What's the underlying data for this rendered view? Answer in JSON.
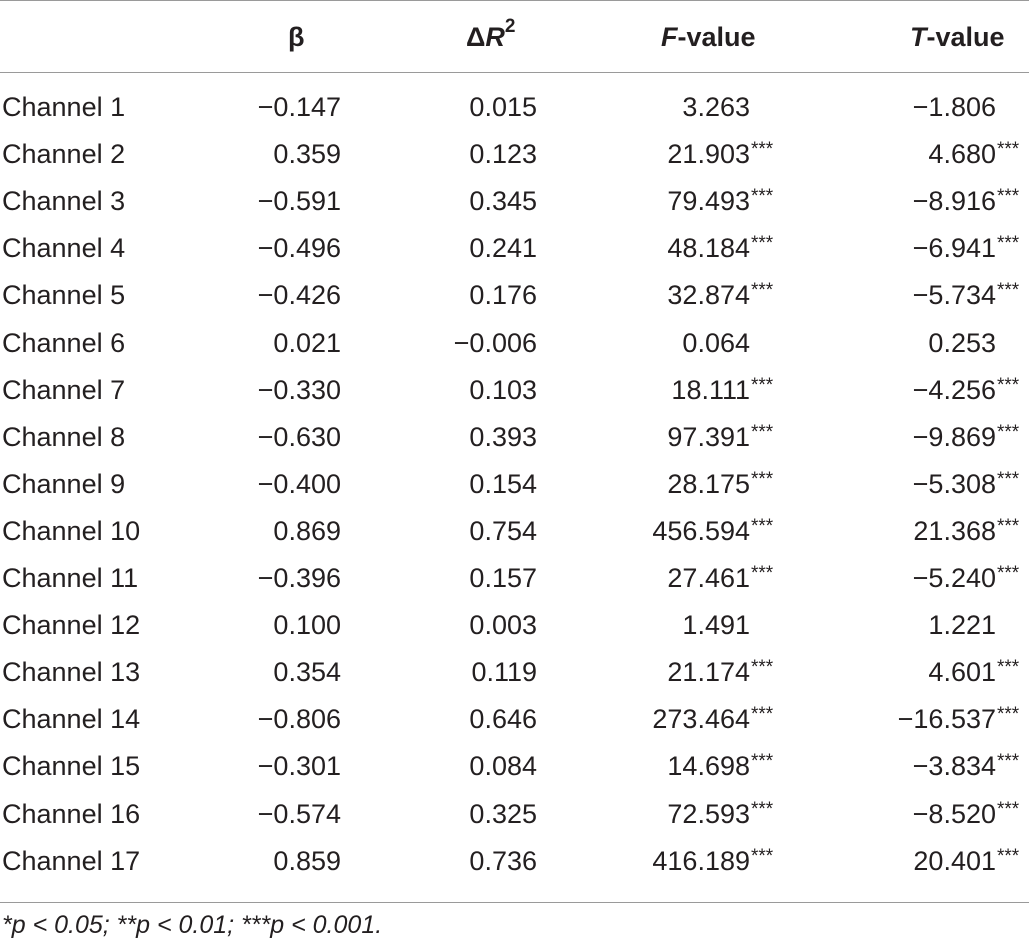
{
  "header": {
    "beta": "β",
    "delta_r2_prefix": "Δ",
    "delta_r2_var": "R",
    "delta_r2_sup": "2",
    "f_var": "F",
    "f_suffix": "-value",
    "t_var": "T",
    "t_suffix": "-value"
  },
  "rows": [
    {
      "label": "Channel 1",
      "beta": "−0.147",
      "dr2": "0.015",
      "f": "3.263",
      "f_sig": "",
      "t": "−1.806",
      "t_sig": ""
    },
    {
      "label": "Channel 2",
      "beta": "0.359",
      "dr2": "0.123",
      "f": "21.903",
      "f_sig": "***",
      "t": "4.680",
      "t_sig": "***"
    },
    {
      "label": "Channel 3",
      "beta": "−0.591",
      "dr2": "0.345",
      "f": "79.493",
      "f_sig": "***",
      "t": "−8.916",
      "t_sig": "***"
    },
    {
      "label": "Channel 4",
      "beta": "−0.496",
      "dr2": "0.241",
      "f": "48.184",
      "f_sig": "***",
      "t": "−6.941",
      "t_sig": "***"
    },
    {
      "label": "Channel 5",
      "beta": "−0.426",
      "dr2": "0.176",
      "f": "32.874",
      "f_sig": "***",
      "t": "−5.734",
      "t_sig": "***"
    },
    {
      "label": "Channel 6",
      "beta": "0.021",
      "dr2": "−0.006",
      "f": "0.064",
      "f_sig": "",
      "t": "0.253",
      "t_sig": ""
    },
    {
      "label": "Channel 7",
      "beta": "−0.330",
      "dr2": "0.103",
      "f": "18.111",
      "f_sig": "***",
      "t": "−4.256",
      "t_sig": "***"
    },
    {
      "label": "Channel 8",
      "beta": "−0.630",
      "dr2": "0.393",
      "f": "97.391",
      "f_sig": "***",
      "t": "−9.869",
      "t_sig": "***"
    },
    {
      "label": "Channel 9",
      "beta": "−0.400",
      "dr2": "0.154",
      "f": "28.175",
      "f_sig": "***",
      "t": "−5.308",
      "t_sig": "***"
    },
    {
      "label": "Channel 10",
      "beta": "0.869",
      "dr2": "0.754",
      "f": "456.594",
      "f_sig": "***",
      "t": "21.368",
      "t_sig": "***"
    },
    {
      "label": "Channel 11",
      "beta": "−0.396",
      "dr2": "0.157",
      "f": "27.461",
      "f_sig": "***",
      "t": "−5.240",
      "t_sig": "***"
    },
    {
      "label": "Channel 12",
      "beta": "0.100",
      "dr2": "0.003",
      "f": "1.491",
      "f_sig": "",
      "t": "1.221",
      "t_sig": ""
    },
    {
      "label": "Channel 13",
      "beta": "0.354",
      "dr2": "0.119",
      "f": "21.174",
      "f_sig": "***",
      "t": "4.601",
      "t_sig": "***"
    },
    {
      "label": "Channel 14",
      "beta": "−0.806",
      "dr2": "0.646",
      "f": "273.464",
      "f_sig": "***",
      "t": "−16.537",
      "t_sig": "***"
    },
    {
      "label": "Channel 15",
      "beta": "−0.301",
      "dr2": "0.084",
      "f": "14.698",
      "f_sig": "***",
      "t": "−3.834",
      "t_sig": "***"
    },
    {
      "label": "Channel 16",
      "beta": "−0.574",
      "dr2": "0.325",
      "f": "72.593",
      "f_sig": "***",
      "t": "−8.520",
      "t_sig": "***"
    },
    {
      "label": "Channel 17",
      "beta": "0.859",
      "dr2": "0.736",
      "f": "416.189",
      "f_sig": "***",
      "t": "20.401",
      "t_sig": "***"
    }
  ],
  "footnote": "*p < 0.05; **p < 0.01; ***p < 0.001."
}
